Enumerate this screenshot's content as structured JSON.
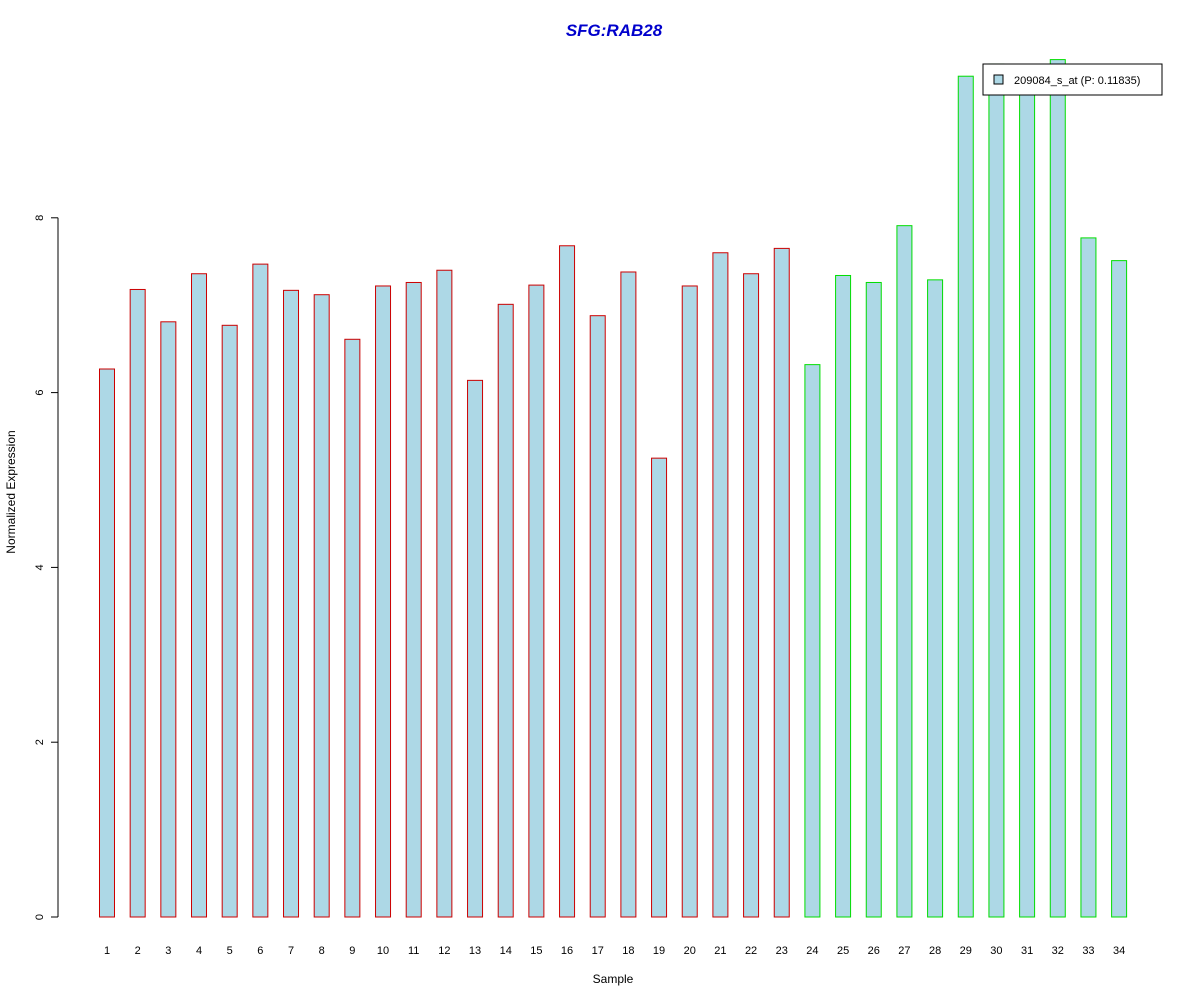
{
  "chart_data": {
    "type": "bar",
    "title": "SFG:RAB28",
    "xlabel": "Sample",
    "ylabel": "Normalized Expression",
    "categories": [
      "1",
      "2",
      "3",
      "4",
      "5",
      "6",
      "7",
      "8",
      "9",
      "10",
      "11",
      "12",
      "13",
      "14",
      "15",
      "16",
      "17",
      "18",
      "19",
      "20",
      "21",
      "22",
      "23",
      "24",
      "25",
      "26",
      "27",
      "28",
      "29",
      "30",
      "31",
      "32",
      "33",
      "34"
    ],
    "series": [
      {
        "name": "209084_s_at (P: 0.11835)",
        "values": [
          6.27,
          7.18,
          6.81,
          7.36,
          6.77,
          7.47,
          7.17,
          7.12,
          6.61,
          7.22,
          7.26,
          7.4,
          6.14,
          7.01,
          7.23,
          7.68,
          6.88,
          7.38,
          5.25,
          7.22,
          7.6,
          7.36,
          7.65,
          6.32,
          7.34,
          7.26,
          7.91,
          7.29,
          9.62,
          9.76,
          9.5,
          9.81,
          7.77,
          7.51
        ]
      }
    ],
    "group_edge_colors": [
      "#cc0000",
      "#cc0000",
      "#cc0000",
      "#cc0000",
      "#cc0000",
      "#cc0000",
      "#cc0000",
      "#cc0000",
      "#cc0000",
      "#cc0000",
      "#cc0000",
      "#cc0000",
      "#cc0000",
      "#cc0000",
      "#cc0000",
      "#cc0000",
      "#cc0000",
      "#cc0000",
      "#cc0000",
      "#cc0000",
      "#cc0000",
      "#cc0000",
      "#cc0000",
      "#00dd00",
      "#00dd00",
      "#00dd00",
      "#00dd00",
      "#00dd00",
      "#00dd00",
      "#00dd00",
      "#00dd00",
      "#00dd00",
      "#00dd00",
      "#00dd00"
    ],
    "bar_fill": "#add8e6",
    "title_color": "#0000cc",
    "yticks": [
      0,
      2,
      4,
      6,
      8
    ],
    "ylim": [
      0,
      10
    ],
    "grid": false,
    "legend_position": "top-right"
  }
}
